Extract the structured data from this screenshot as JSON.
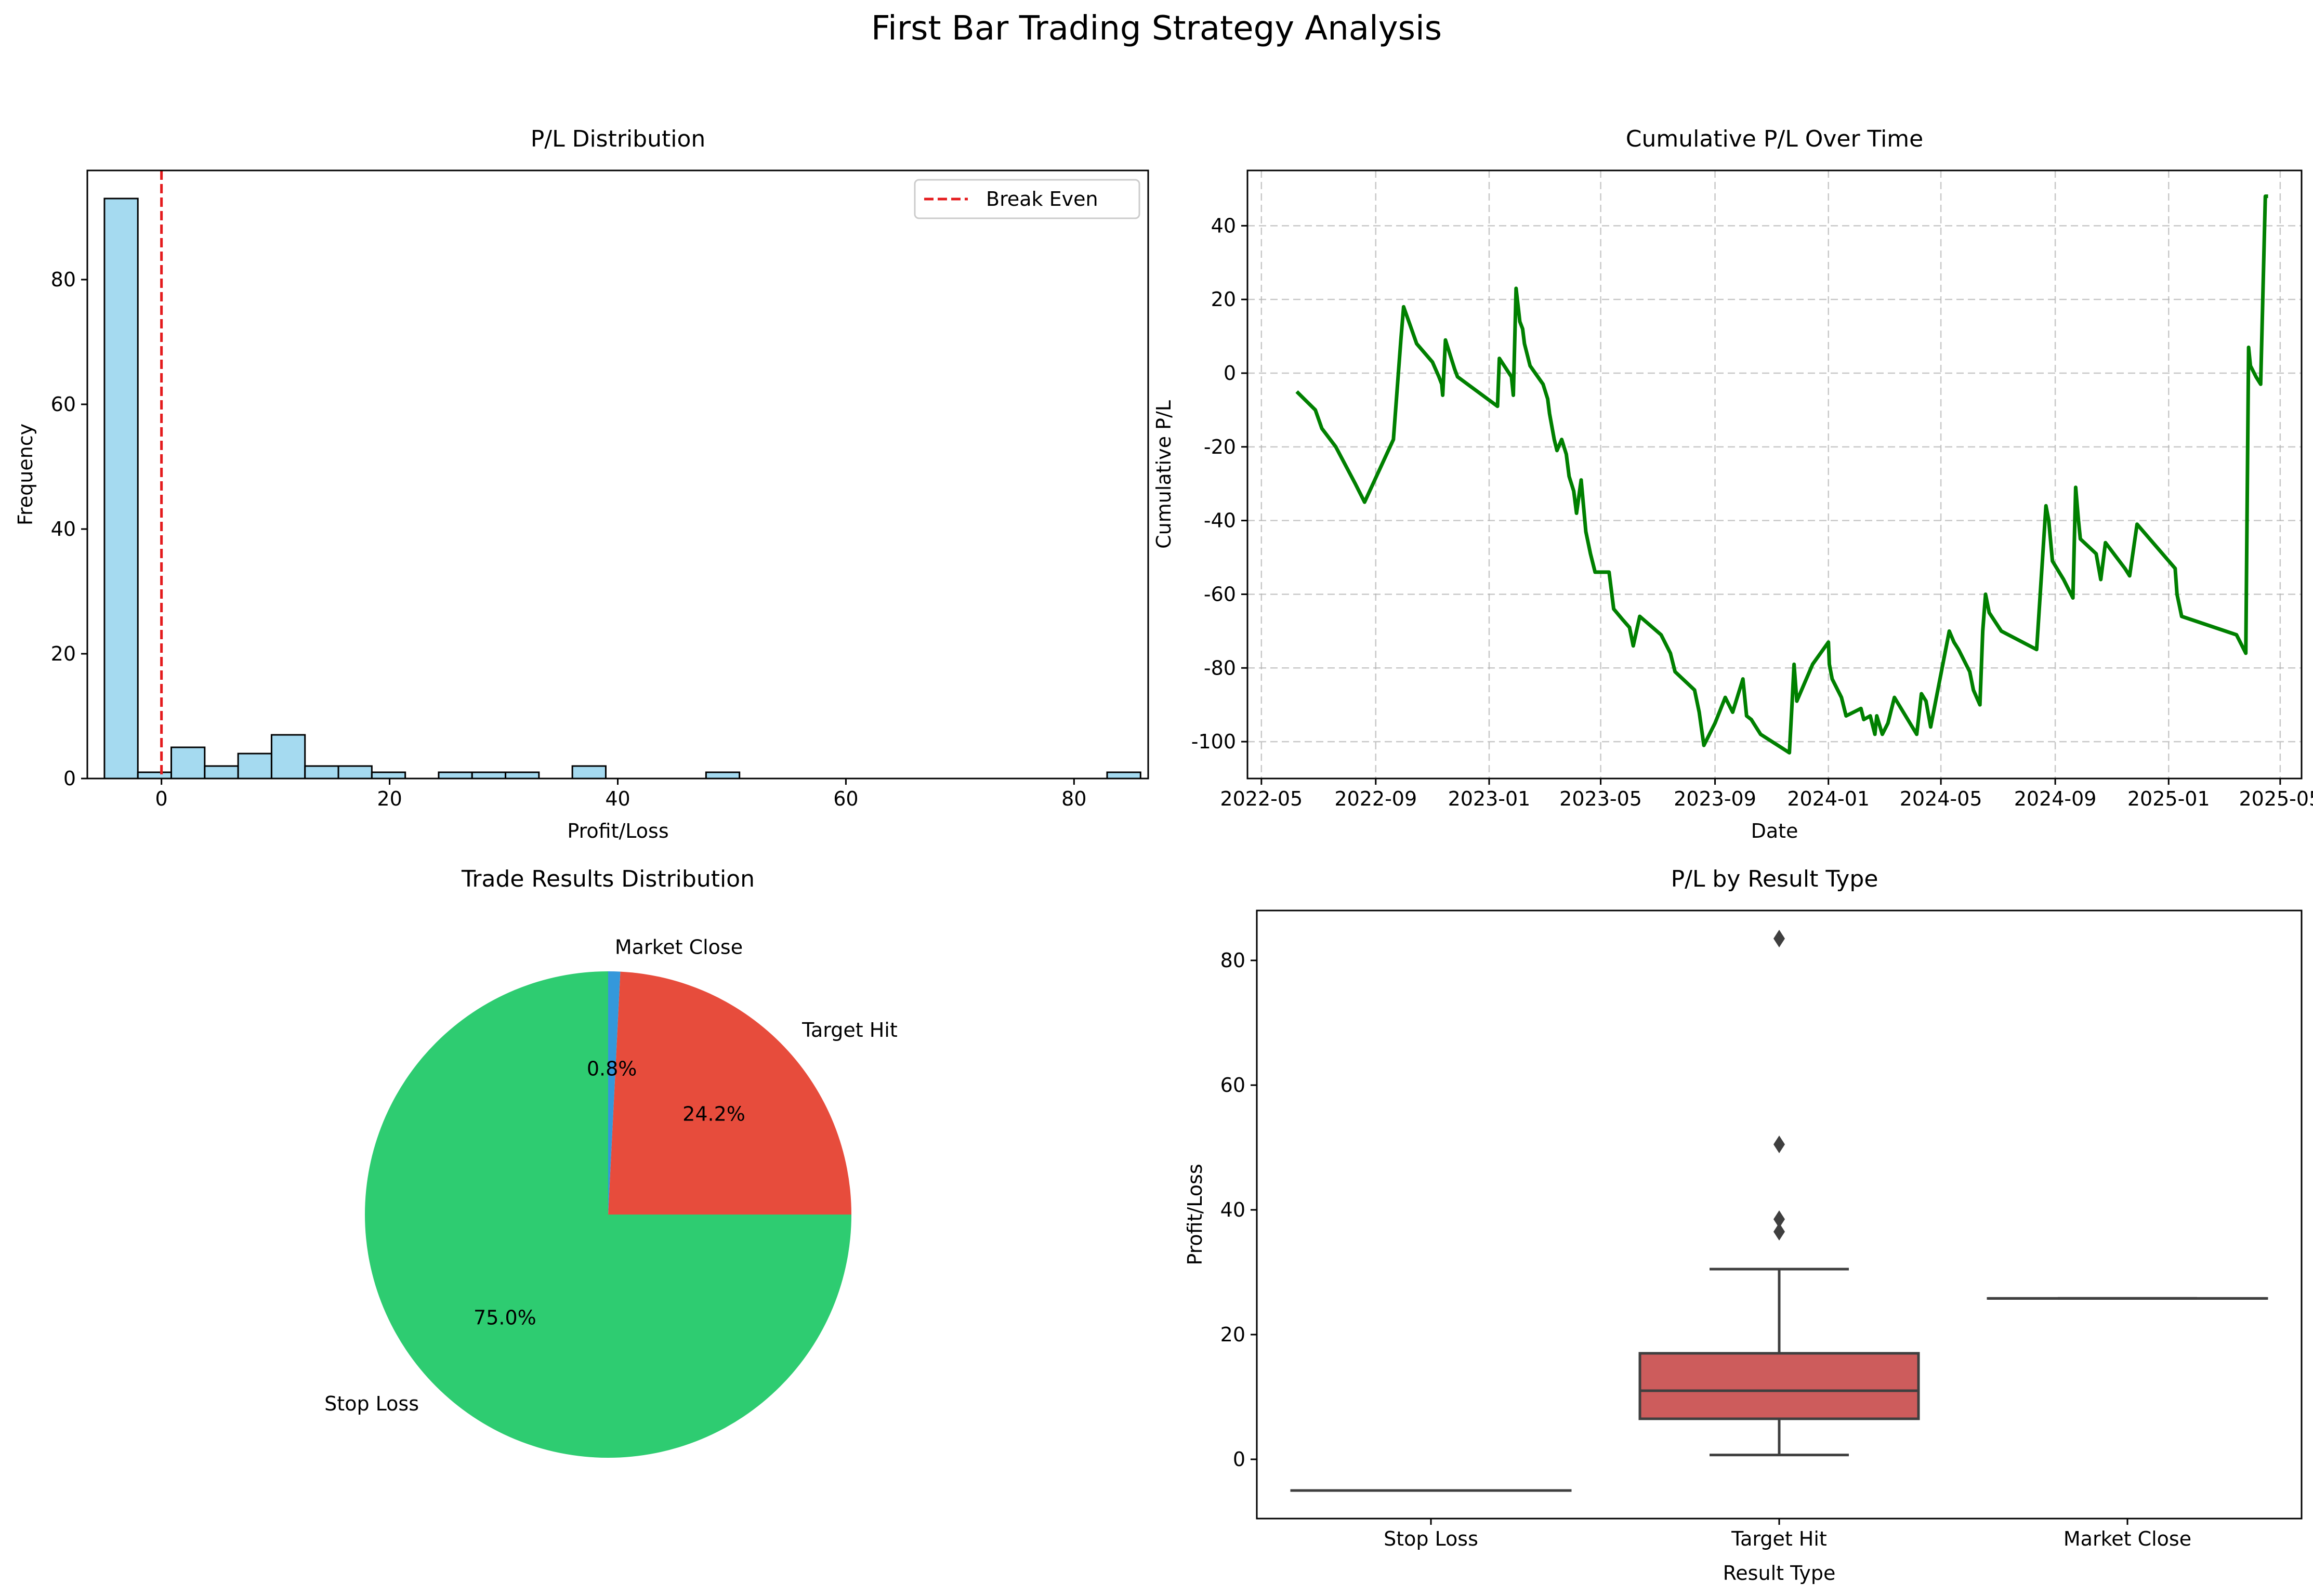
{
  "figure": {
    "title": "First Bar Trading Strategy Analysis"
  },
  "chart_data": [
    {
      "type": "bar",
      "subtype": "histogram",
      "title": "P/L Distribution",
      "xlabel": "Profit/Loss",
      "ylabel": "Frequency",
      "xlim": [
        -6.5,
        86.5
      ],
      "ylim": [
        0,
        97.5
      ],
      "xticks": [
        0,
        20,
        40,
        60,
        80
      ],
      "yticks": [
        0,
        20,
        40,
        60,
        80
      ],
      "bin_start": -5.0,
      "bin_width": 2.93,
      "counts": [
        93,
        1,
        5,
        2,
        4,
        7,
        2,
        2,
        1,
        0,
        1,
        1,
        1,
        0,
        2,
        0,
        0,
        0,
        1,
        0,
        0,
        0,
        0,
        0,
        0,
        0,
        0,
        0,
        0,
        0,
        1
      ],
      "bar_color": "#87CEEB",
      "reference_line": {
        "x": 0,
        "label": "Break Even",
        "color": "#e41a1c",
        "style": "dashed"
      },
      "legend": {
        "position": "top-right",
        "entries": [
          "Break Even"
        ]
      }
    },
    {
      "type": "line",
      "title": "Cumulative P/L Over Time",
      "xlabel": "Date",
      "ylabel": "Cumulative P/L",
      "xticks": [
        "2022-05",
        "2022-09",
        "2023-01",
        "2023-05",
        "2023-09",
        "2024-01",
        "2024-05",
        "2024-09",
        "2025-01",
        "2025-05"
      ],
      "xlim": [
        "2022-04-16",
        "2025-05-24"
      ],
      "ylim": [
        -110,
        55
      ],
      "yticks": [
        -100,
        -80,
        -60,
        -40,
        -20,
        0,
        20,
        40
      ],
      "grid": true,
      "color": "#008000",
      "series": [
        {
          "x": [
            "2022-06-08",
            "2022-06-28",
            "2022-07-05",
            "2022-07-20",
            "2022-08-10",
            "2022-08-20",
            "2022-09-20",
            "2022-09-28",
            "2022-10-01",
            "2022-10-08",
            "2022-10-15",
            "2022-11-01",
            "2022-11-08",
            "2022-11-11",
            "2022-11-12",
            "2022-11-15",
            "2022-11-25",
            "2022-11-28",
            "2023-01-10",
            "2023-01-12",
            "2023-01-25",
            "2023-01-27",
            "2023-01-30",
            "2023-02-03",
            "2023-02-06",
            "2023-02-08",
            "2023-02-14",
            "2023-02-28",
            "2023-03-05",
            "2023-03-07",
            "2023-03-12",
            "2023-03-15",
            "2023-03-20",
            "2023-03-25",
            "2023-03-28",
            "2023-04-02",
            "2023-04-05",
            "2023-04-10",
            "2023-04-15",
            "2023-04-20",
            "2023-04-25",
            "2023-05-10",
            "2023-05-15",
            "2023-05-25",
            "2023-06-01",
            "2023-06-05",
            "2023-06-12",
            "2023-07-05",
            "2023-07-15",
            "2023-07-20",
            "2023-08-10",
            "2023-08-15",
            "2023-08-20",
            "2023-09-01",
            "2023-09-12",
            "2023-09-20",
            "2023-10-01",
            "2023-10-05",
            "2023-10-10",
            "2023-10-15",
            "2023-10-20",
            "2023-11-20",
            "2023-11-23",
            "2023-11-25",
            "2023-11-28",
            "2023-12-15",
            "2024-01-01",
            "2024-01-02",
            "2024-01-05",
            "2024-01-15",
            "2024-01-20",
            "2024-02-05",
            "2024-02-08",
            "2024-02-15",
            "2024-02-20",
            "2024-02-22",
            "2024-02-28",
            "2024-03-05",
            "2024-03-08",
            "2024-03-12",
            "2024-04-05",
            "2024-04-10",
            "2024-04-15",
            "2024-04-20",
            "2024-05-10",
            "2024-05-15",
            "2024-05-20",
            "2024-06-01",
            "2024-06-05",
            "2024-06-12",
            "2024-06-15",
            "2024-06-18",
            "2024-06-22",
            "2024-07-05",
            "2024-08-12",
            "2024-08-22",
            "2024-08-25",
            "2024-08-29",
            "2024-09-10",
            "2024-09-20",
            "2024-09-23",
            "2024-09-26",
            "2024-09-28",
            "2024-10-15",
            "2024-10-20",
            "2024-10-25",
            "2024-11-15",
            "2024-11-20",
            "2024-11-28",
            "2025-01-08",
            "2025-01-10",
            "2025-01-15",
            "2025-03-15",
            "2025-03-25",
            "2025-03-28",
            "2025-03-30",
            "2025-04-05",
            "2025-04-10",
            "2025-04-15",
            "2025-04-18"
          ],
          "y": [
            -5,
            -10,
            -15,
            -20,
            -30,
            -35,
            -18,
            9,
            18,
            13,
            8,
            3,
            -1,
            -3,
            -6,
            9,
            1,
            -1,
            -9,
            4,
            -1,
            -6,
            23,
            14,
            12,
            8,
            2,
            -3,
            -7,
            -11,
            -18,
            -21,
            -18,
            -22,
            -28,
            -32,
            -38,
            -29,
            -43,
            -49,
            -54,
            -54,
            -64,
            -67,
            -69,
            -74,
            -66,
            -71,
            -76,
            -81,
            -86,
            -92,
            -101,
            -95,
            -88,
            -92,
            -83,
            -93,
            -94,
            -96,
            -98,
            -103,
            -89,
            -79,
            -89,
            -79,
            -73,
            -79,
            -83,
            -88,
            -93,
            -91,
            -94,
            -93,
            -98,
            -93,
            -98,
            -95,
            -92,
            -88,
            -98,
            -87,
            -89,
            -96,
            -70,
            -73,
            -75,
            -81,
            -86,
            -90,
            -70,
            -60,
            -65,
            -70,
            -75,
            -36,
            -40,
            -51,
            -56,
            -61,
            -31,
            -40,
            -45,
            -49,
            -56,
            -46,
            -53,
            -55,
            -41,
            -53,
            -60,
            -66,
            -71,
            -76,
            7,
            2,
            -1,
            -3,
            48,
            48
          ]
        }
      ]
    },
    {
      "type": "pie",
      "title": "Trade Results Distribution",
      "slices": [
        {
          "label": "Stop Loss",
          "value": 75.0,
          "pct_label": "75.0%",
          "color": "#2ECC71"
        },
        {
          "label": "Target Hit",
          "value": 24.2,
          "pct_label": "24.2%",
          "color": "#E74C3C"
        },
        {
          "label": "Market Close",
          "value": 0.8,
          "pct_label": "0.8%",
          "color": "#3498DB"
        }
      ]
    },
    {
      "type": "box",
      "title": "P/L by Result Type",
      "xlabel": "Result Type",
      "ylabel": "Profit/Loss",
      "ylim": [
        -9.5,
        88
      ],
      "yticks": [
        0,
        20,
        40,
        60,
        80
      ],
      "categories": [
        "Stop Loss",
        "Target Hit",
        "Market Close"
      ],
      "boxes": [
        {
          "category": "Stop Loss",
          "min": -5,
          "q1": -5,
          "median": -5,
          "q3": -5,
          "max": -5,
          "outliers": [],
          "color": "#2ECC71"
        },
        {
          "category": "Target Hit",
          "min": 0.7,
          "q1": 6.5,
          "median": 11,
          "q3": 17,
          "max": 30.5,
          "outliers": [
            36.5,
            38.5,
            50.5,
            83.5
          ],
          "color": "#CD5C5C"
        },
        {
          "category": "Market Close",
          "min": 25.8,
          "q1": 25.8,
          "median": 25.8,
          "q3": 25.8,
          "max": 25.8,
          "outliers": [],
          "color": "#3498DB"
        }
      ]
    }
  ]
}
